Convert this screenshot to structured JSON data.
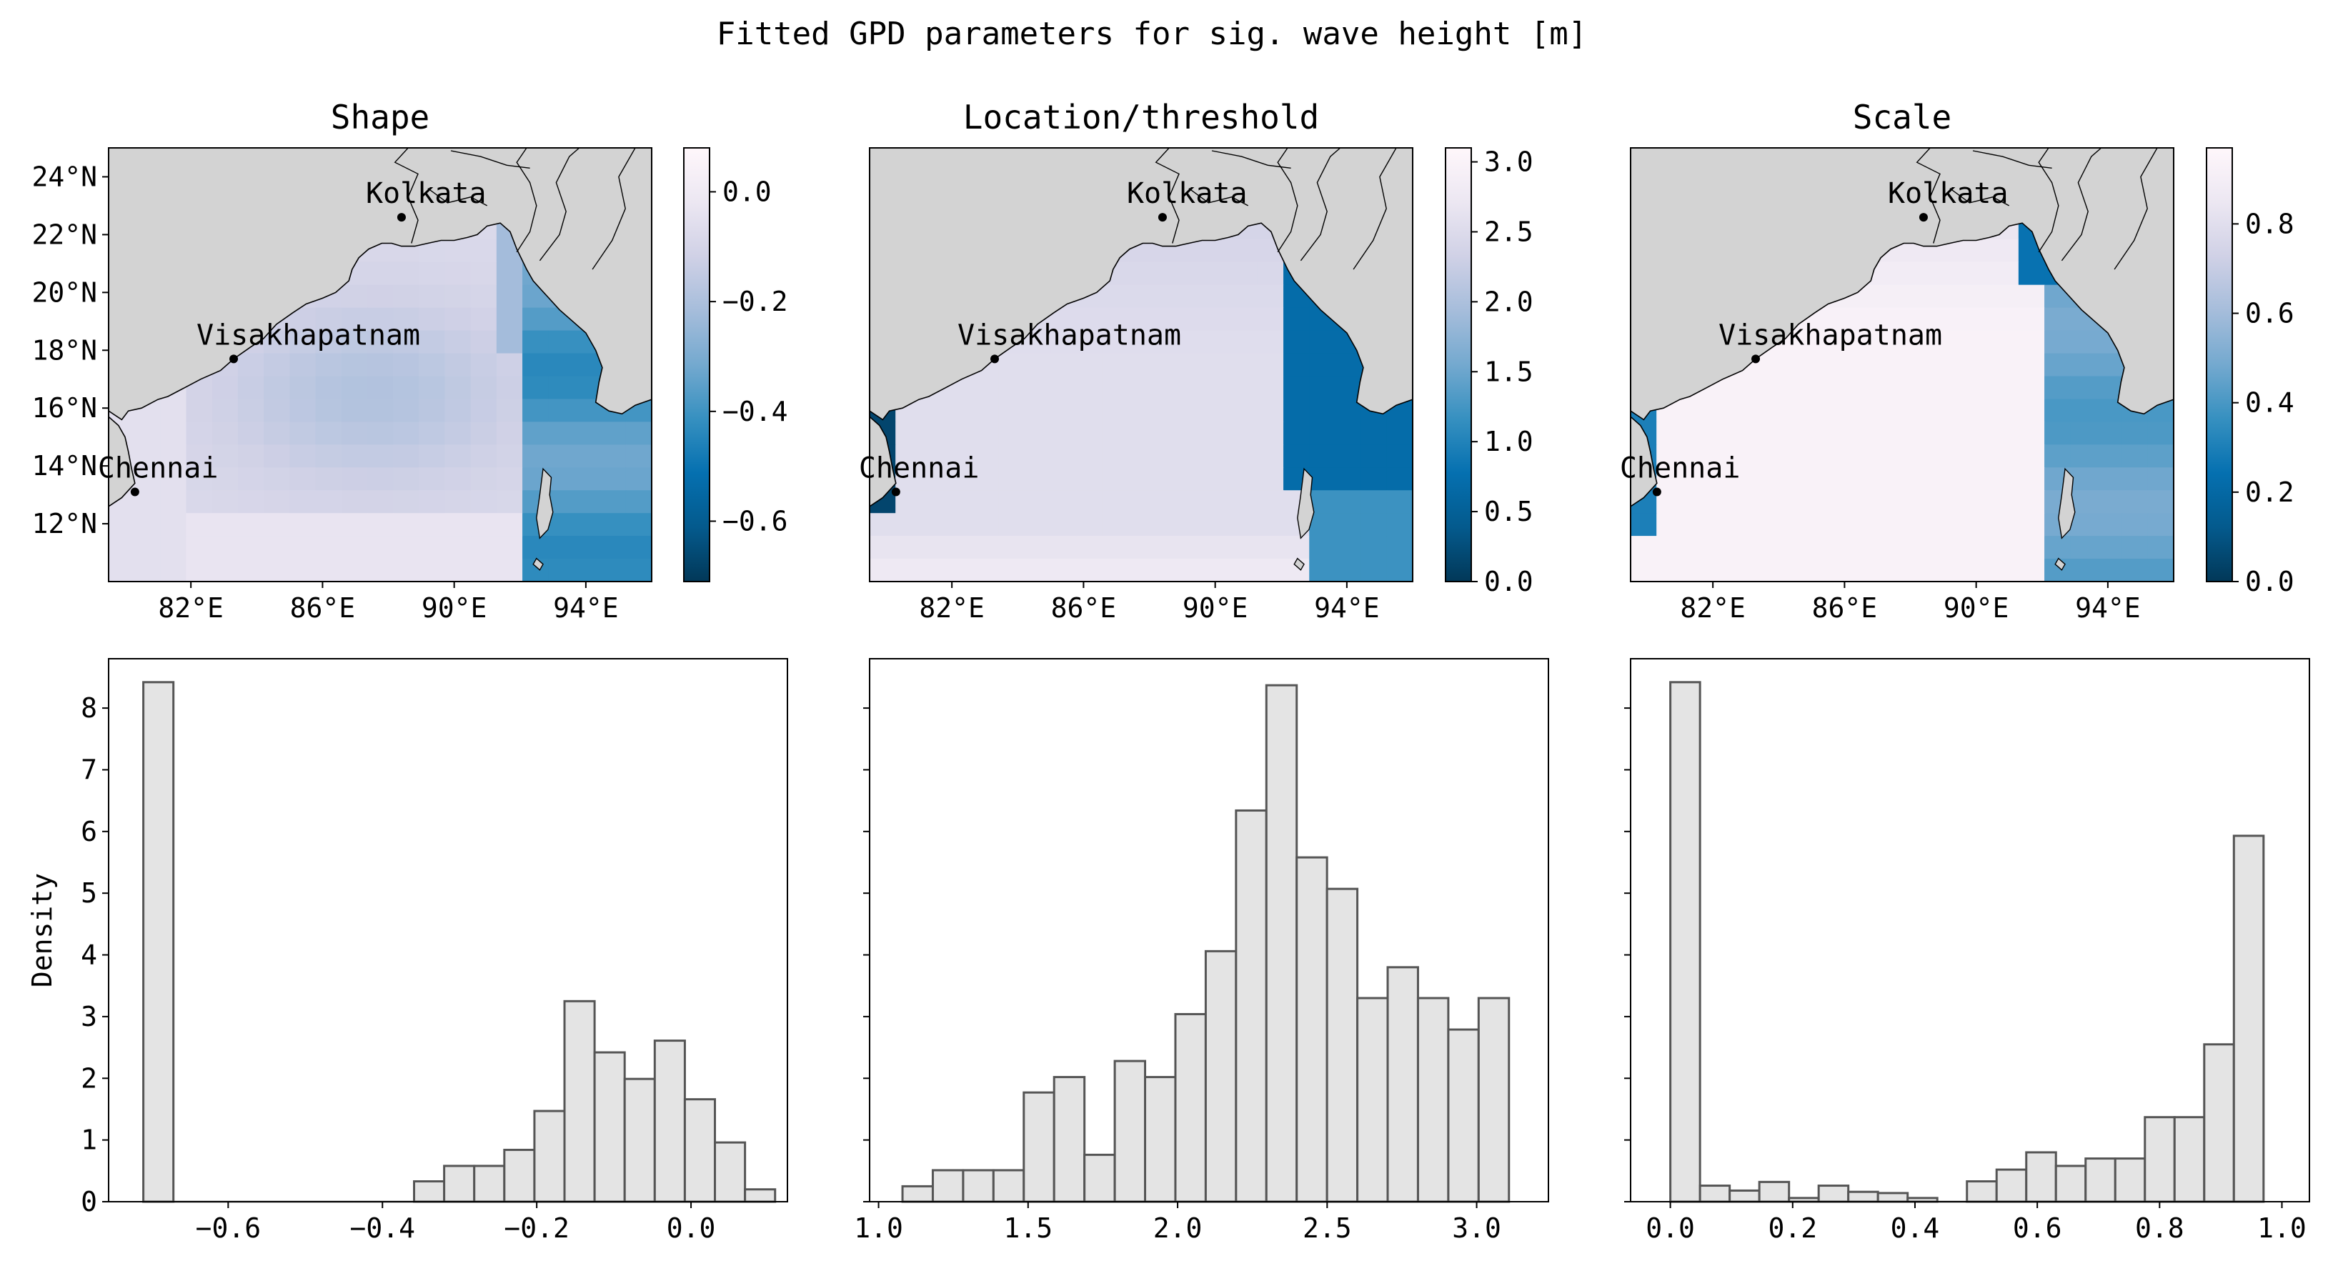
{
  "figure": {
    "title": "Fitted GPD parameters for sig. wave height [m]"
  },
  "colors": {
    "land": "#d3d3d3",
    "coast": "#000000",
    "hist_fill": "#e4e4e4",
    "hist_edge": "#555555",
    "colormap": [
      "#023858",
      "#045a8d",
      "#0570b0",
      "#3690c0",
      "#74a9cf",
      "#a6bddb",
      "#d0d1e6",
      "#ece7f2",
      "#fff7fb"
    ]
  },
  "map": {
    "lon_range": [
      79.5,
      96.0
    ],
    "lat_range": [
      10.0,
      25.0
    ],
    "x_ticks": [
      {
        "v": 82,
        "label": "82°E"
      },
      {
        "v": 86,
        "label": "86°E"
      },
      {
        "v": 90,
        "label": "90°E"
      },
      {
        "v": 94,
        "label": "94°E"
      }
    ],
    "y_ticks": [
      {
        "v": 12,
        "label": "12°N"
      },
      {
        "v": 14,
        "label": "14°N"
      },
      {
        "v": 16,
        "label": "16°N"
      },
      {
        "v": 18,
        "label": "18°N"
      },
      {
        "v": 20,
        "label": "20°N"
      },
      {
        "v": 22,
        "label": "22°N"
      },
      {
        "v": 24,
        "label": "24°N"
      }
    ],
    "cities": [
      {
        "name": "Kolkata",
        "lon": 88.4,
        "lat": 22.6
      },
      {
        "name": "Visakhapatnam",
        "lon": 83.3,
        "lat": 17.7
      },
      {
        "name": "Chennai",
        "lon": 80.3,
        "lat": 13.1
      }
    ]
  },
  "chart_data": [
    {
      "type": "heatmap",
      "title": "Shape",
      "field": "shape",
      "colorbar": {
        "range": [
          -0.71,
          0.08
        ],
        "ticks": [
          {
            "v": 0.0,
            "label": "0.0"
          },
          {
            "v": -0.2,
            "label": "−0.2"
          },
          {
            "v": -0.4,
            "label": "−0.4"
          },
          {
            "v": -0.6,
            "label": "−0.6"
          }
        ]
      }
    },
    {
      "type": "heatmap",
      "title": "Location/threshold",
      "field": "location",
      "colorbar": {
        "range": [
          0.0,
          3.1
        ],
        "ticks": [
          {
            "v": 0.0,
            "label": "0.0"
          },
          {
            "v": 0.5,
            "label": "0.5"
          },
          {
            "v": 1.0,
            "label": "1.0"
          },
          {
            "v": 1.5,
            "label": "1.5"
          },
          {
            "v": 2.0,
            "label": "2.0"
          },
          {
            "v": 2.5,
            "label": "2.5"
          },
          {
            "v": 3.0,
            "label": "3.0"
          }
        ]
      }
    },
    {
      "type": "heatmap",
      "title": "Scale",
      "field": "scale",
      "colorbar": {
        "range": [
          0.0,
          0.97
        ],
        "ticks": [
          {
            "v": 0.0,
            "label": "0.0"
          },
          {
            "v": 0.2,
            "label": "0.2"
          },
          {
            "v": 0.4,
            "label": "0.4"
          },
          {
            "v": 0.6,
            "label": "0.6"
          },
          {
            "v": 0.8,
            "label": "0.8"
          }
        ]
      }
    },
    {
      "type": "bar",
      "subtype": "histogram",
      "ylabel": "Density",
      "xlim": [
        -0.755,
        0.125
      ],
      "ylim": [
        0,
        8.8
      ],
      "bin_start": -0.71,
      "bin_width": 0.039,
      "values": [
        8.42,
        0,
        0,
        0,
        0,
        0,
        0,
        0,
        0,
        0.33,
        0.58,
        0.58,
        0.84,
        1.47,
        3.25,
        2.42,
        1.99,
        2.61,
        1.66,
        0.96,
        0.2
      ],
      "x_ticks": [
        {
          "v": -0.6,
          "label": "−0.6"
        },
        {
          "v": -0.4,
          "label": "−0.4"
        },
        {
          "v": -0.2,
          "label": "−0.2"
        },
        {
          "v": 0.0,
          "label": "0.0"
        }
      ],
      "y_ticks": [
        {
          "v": 0,
          "label": "0"
        },
        {
          "v": 1,
          "label": "1"
        },
        {
          "v": 2,
          "label": "2"
        },
        {
          "v": 3,
          "label": "3"
        },
        {
          "v": 4,
          "label": "4"
        },
        {
          "v": 5,
          "label": "5"
        },
        {
          "v": 6,
          "label": "6"
        },
        {
          "v": 7,
          "label": "7"
        },
        {
          "v": 8,
          "label": "8"
        }
      ]
    },
    {
      "type": "bar",
      "subtype": "histogram",
      "ylabel": "",
      "xlim": [
        0.97,
        3.24
      ],
      "ylim": [
        0,
        8.8
      ],
      "bin_start": 1.08,
      "bin_width": 0.1014,
      "values": [
        0.25,
        0.51,
        0.51,
        0.51,
        1.77,
        2.02,
        0.76,
        2.28,
        2.02,
        3.04,
        4.06,
        6.34,
        8.37,
        5.58,
        5.07,
        3.3,
        3.8,
        3.3,
        2.79,
        3.3
      ],
      "x_ticks": [
        {
          "v": 1.0,
          "label": "1.0"
        },
        {
          "v": 1.5,
          "label": "1.5"
        },
        {
          "v": 2.0,
          "label": "2.0"
        },
        {
          "v": 2.5,
          "label": "2.5"
        },
        {
          "v": 3.0,
          "label": "3.0"
        }
      ],
      "y_ticks_labels_hidden": true
    },
    {
      "type": "bar",
      "subtype": "histogram",
      "ylabel": "",
      "xlim": [
        -0.065,
        1.045
      ],
      "ylim": [
        0,
        8.8
      ],
      "bin_start": 0.0,
      "bin_width": 0.0485,
      "values": [
        8.42,
        0.26,
        0.18,
        0.32,
        0.06,
        0.26,
        0.16,
        0.14,
        0.06,
        0.0,
        0.33,
        0.52,
        0.8,
        0.58,
        0.7,
        0.7,
        1.37,
        1.37,
        2.55,
        5.93
      ],
      "x_ticks": [
        {
          "v": 0.0,
          "label": "0.0"
        },
        {
          "v": 0.2,
          "label": "0.2"
        },
        {
          "v": 0.4,
          "label": "0.4"
        },
        {
          "v": 0.6,
          "label": "0.6"
        },
        {
          "v": 0.8,
          "label": "0.8"
        },
        {
          "v": 1.0,
          "label": "1.0"
        }
      ],
      "y_ticks_labels_hidden": true
    }
  ]
}
